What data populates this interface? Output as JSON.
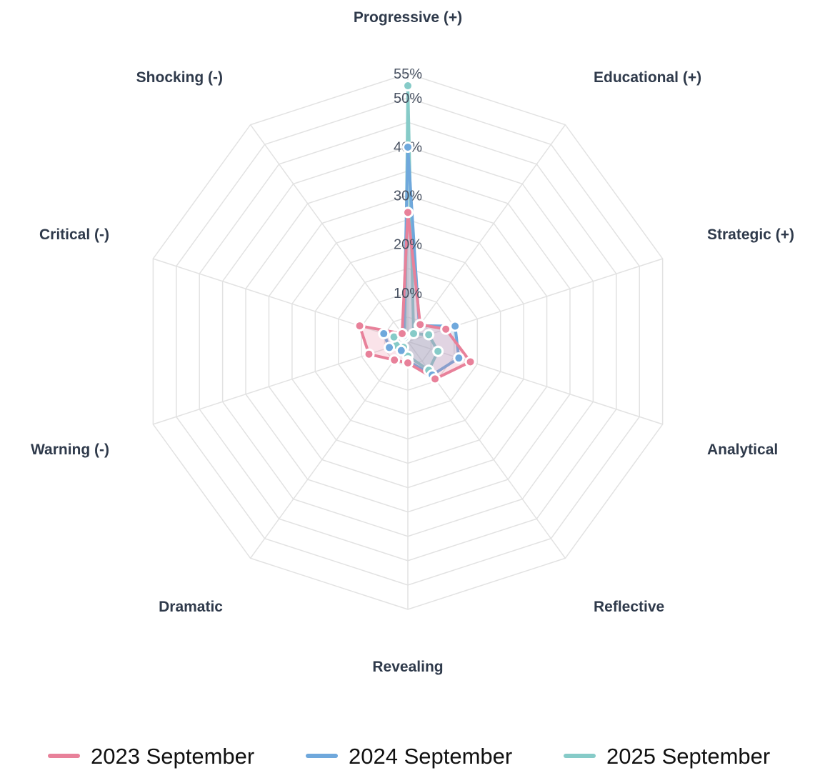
{
  "chart_data": {
    "type": "radar",
    "axes": [
      "Progressive (+)",
      "Educational (+)",
      "Strategic (+)",
      "Analytical",
      "Reflective",
      "Revealing",
      "Dramatic",
      "Warning (-)",
      "Critical (-)",
      "Shocking (-)"
    ],
    "range": [
      0,
      55
    ],
    "ticks": [
      {
        "value": 10,
        "label": "10%"
      },
      {
        "value": 20,
        "label": "20%"
      },
      {
        "value": 30,
        "label": "30%"
      },
      {
        "value": 40,
        "label": "40%"
      },
      {
        "value": 50,
        "label": "50%"
      },
      {
        "value": 55,
        "label": "55%"
      }
    ],
    "grid": true,
    "legend_position": "bottom",
    "series": [
      {
        "name": "2023 September",
        "color": "#e8819a",
        "values": [
          26.5,
          4.3,
          8.2,
          13.5,
          9.5,
          4.4,
          4.7,
          8.4,
          10.4,
          2.0
        ]
      },
      {
        "name": "2024 September",
        "color": "#6fa8dc",
        "values": [
          39.9,
          4.0,
          10.2,
          11.0,
          8.5,
          4.0,
          2.3,
          4.0,
          5.2,
          1.5
        ]
      },
      {
        "name": "2025 September",
        "color": "#86cbc8",
        "values": [
          52.5,
          2.0,
          4.5,
          6.5,
          7.3,
          3.0,
          1.5,
          2.5,
          3.0,
          1.0
        ]
      }
    ]
  }
}
